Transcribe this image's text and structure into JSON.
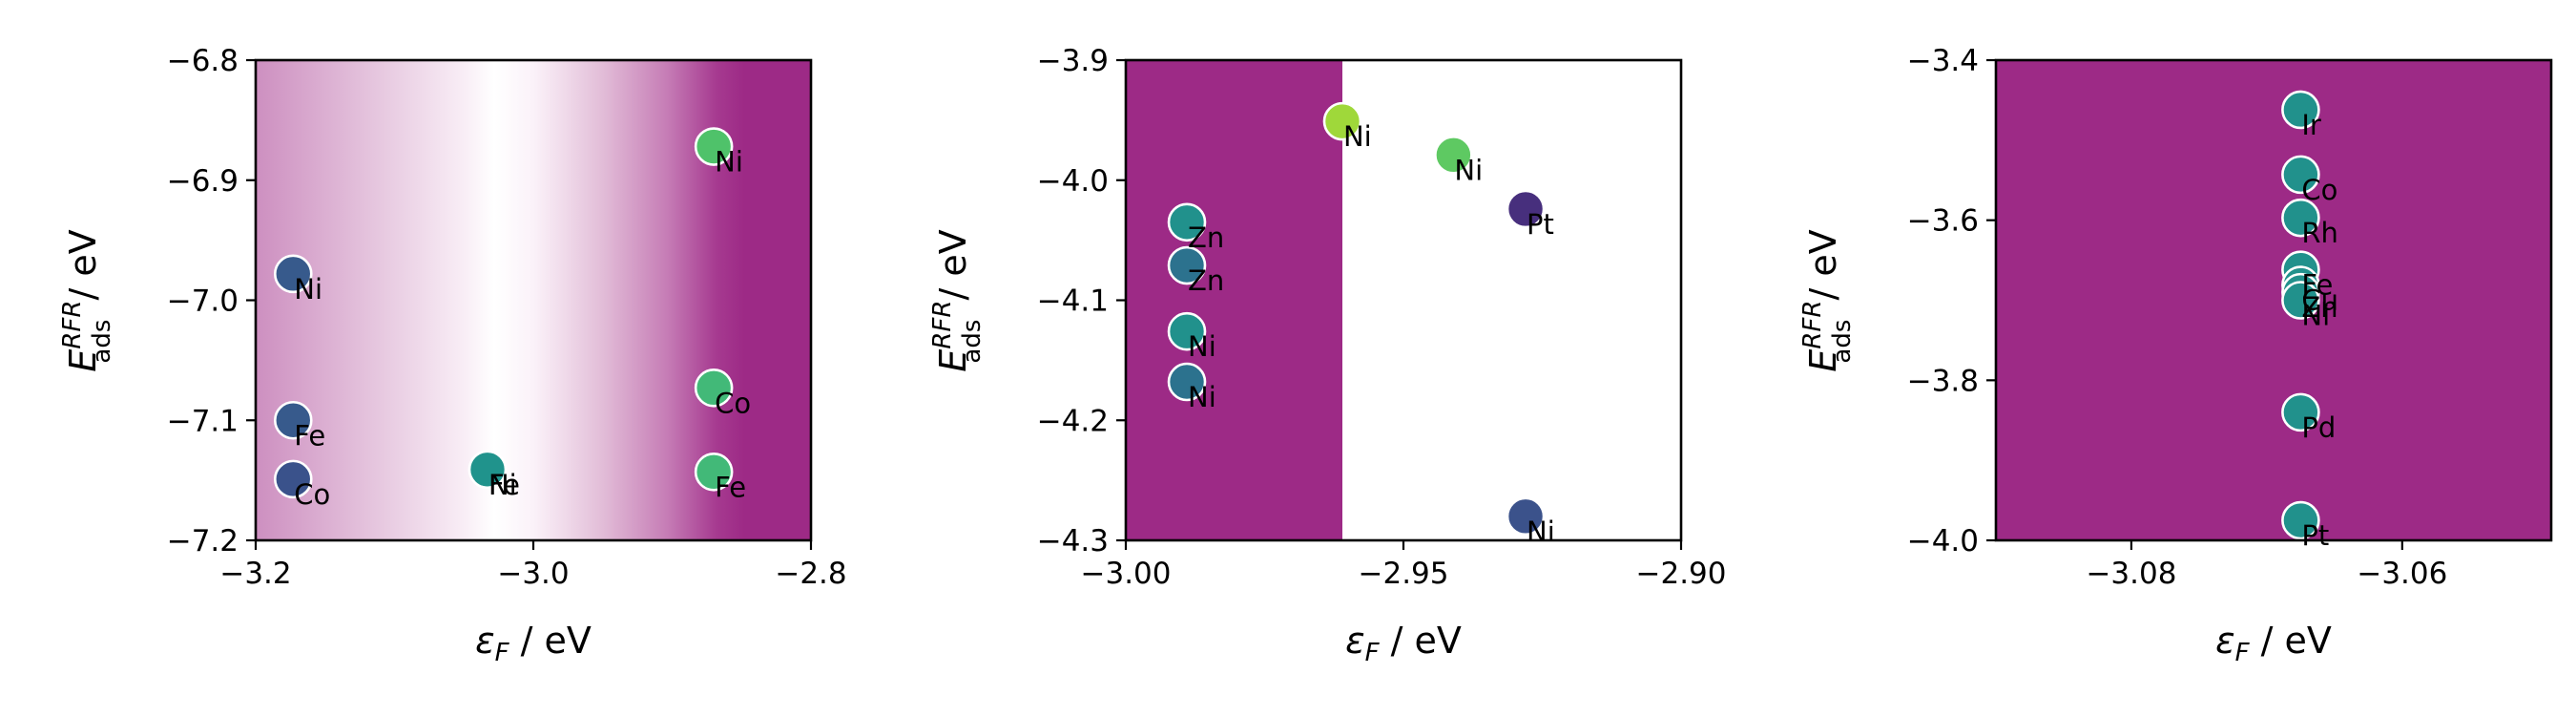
{
  "figure": {
    "panels": [
      {
        "id": "left",
        "xlabel": "εF / eV",
        "ylabel": "E RFR ads / eV"
      },
      {
        "id": "middle",
        "xlabel": "εF / eV",
        "ylabel": "E RFR ads / eV"
      },
      {
        "id": "right",
        "xlabel": "εF / eV",
        "ylabel": "E RFR ads / eV"
      }
    ]
  },
  "chart_data": [
    {
      "type": "scatter",
      "xlabel": "ε_F / eV",
      "ylabel": "E_ads^RFR / eV",
      "xlim": [
        -3.2,
        -2.8
      ],
      "ylim": [
        -7.2,
        -6.8
      ],
      "xticks": [
        "−3.2",
        "−3.0",
        "−2.8"
      ],
      "xtick_values": [
        -3.2,
        -3.0,
        -2.8
      ],
      "yticks": [
        "−6.8",
        "−6.9",
        "−7.0",
        "−7.1",
        "−7.2"
      ],
      "ytick_values": [
        -6.8,
        -6.9,
        -7.0,
        -7.1,
        -7.2
      ],
      "background": "horizontal purple gradient: light at left, white near εF = -3.03, deep purple from about -2.9 to the right edge",
      "background_colors": {
        "purple": "#9d2a86",
        "light_purple": "#cd8fc0",
        "white": "#ffffff"
      },
      "points": [
        {
          "label": "Ni",
          "x": -2.87,
          "y": -6.872,
          "color": "#4fc26a"
        },
        {
          "label": "Ni",
          "x": -3.173,
          "y": -6.978,
          "color": "#375a8c"
        },
        {
          "label": "Co",
          "x": -2.87,
          "y": -7.073,
          "color": "#42b978"
        },
        {
          "label": "Fe",
          "x": -3.173,
          "y": -7.1,
          "color": "#375a8c"
        },
        {
          "label": "Fe",
          "x": -2.87,
          "y": -7.143,
          "color": "#42b978"
        },
        {
          "label": "Co",
          "x": -3.173,
          "y": -7.149,
          "color": "#3a528b"
        },
        {
          "label": "Fe",
          "x": -3.033,
          "y": -7.141,
          "color": "#20938c"
        },
        {
          "label": "Ni",
          "x": -3.033,
          "y": -7.141,
          "color": "#20938c"
        }
      ]
    },
    {
      "type": "scatter",
      "xlabel": "ε_F / eV",
      "ylabel": "E_ads^RFR / eV",
      "xlim": [
        -3.0,
        -2.9
      ],
      "ylim": [
        -4.3,
        -3.9
      ],
      "xticks": [
        "−3.00",
        "−2.95",
        "−2.90"
      ],
      "xtick_values": [
        -3.0,
        -2.95,
        -2.9
      ],
      "yticks": [
        "−3.9",
        "−4.0",
        "−4.1",
        "−4.2",
        "−4.3"
      ],
      "ytick_values": [
        -3.9,
        -4.0,
        -4.1,
        -4.2,
        -4.3
      ],
      "background": "purple band from -3.00 to about -2.961, white to the right",
      "background_colors": {
        "purple": "#9d2a86",
        "white": "#ffffff"
      },
      "points": [
        {
          "label": "Ni",
          "x": -2.961,
          "y": -3.951,
          "color": "#9fd83a"
        },
        {
          "label": "Ni",
          "x": -2.941,
          "y": -3.979,
          "color": "#5ec962"
        },
        {
          "label": "Pt",
          "x": -2.928,
          "y": -4.024,
          "color": "#472f7d"
        },
        {
          "label": "Zn",
          "x": -2.989,
          "y": -4.035,
          "color": "#21918c"
        },
        {
          "label": "Zn",
          "x": -2.989,
          "y": -4.071,
          "color": "#2c728e"
        },
        {
          "label": "Ni",
          "x": -2.989,
          "y": -4.126,
          "color": "#21918c"
        },
        {
          "label": "Ni",
          "x": -2.989,
          "y": -4.168,
          "color": "#2c728e"
        },
        {
          "label": "Ni",
          "x": -2.928,
          "y": -4.28,
          "color": "#3b528b"
        }
      ]
    },
    {
      "type": "scatter",
      "xlabel": "ε_F / eV",
      "ylabel": "E_ads^RFR / eV",
      "xlim": [
        -3.09,
        -3.049
      ],
      "ylim": [
        -4.0,
        -3.4
      ],
      "xticks": [
        "−3.08",
        "−3.06"
      ],
      "xtick_values": [
        -3.08,
        -3.06
      ],
      "yticks": [
        "−3.4",
        "−3.6",
        "−3.8",
        "−4.0"
      ],
      "ytick_values": [
        -3.4,
        -3.6,
        -3.8,
        -4.0
      ],
      "background": "solid purple",
      "background_colors": {
        "purple": "#9d2a86"
      },
      "points": [
        {
          "label": "Ir",
          "x": -3.0675,
          "y": -3.462,
          "color": "#21918c"
        },
        {
          "label": "Co",
          "x": -3.0675,
          "y": -3.543,
          "color": "#21918c"
        },
        {
          "label": "Rh",
          "x": -3.0675,
          "y": -3.597,
          "color": "#21918c"
        },
        {
          "label": "Fe",
          "x": -3.0675,
          "y": -3.662,
          "color": "#21918c"
        },
        {
          "label": "Cu",
          "x": -3.0675,
          "y": -3.681,
          "color": "#21918c"
        },
        {
          "label": "Zn",
          "x": -3.0675,
          "y": -3.69,
          "color": "#21918c"
        },
        {
          "label": "Ni",
          "x": -3.0675,
          "y": -3.7,
          "color": "#21918c"
        },
        {
          "label": "Pd",
          "x": -3.0675,
          "y": -3.84,
          "color": "#21918c"
        },
        {
          "label": "Pt",
          "x": -3.0675,
          "y": -3.975,
          "color": "#21918c"
        }
      ]
    }
  ]
}
